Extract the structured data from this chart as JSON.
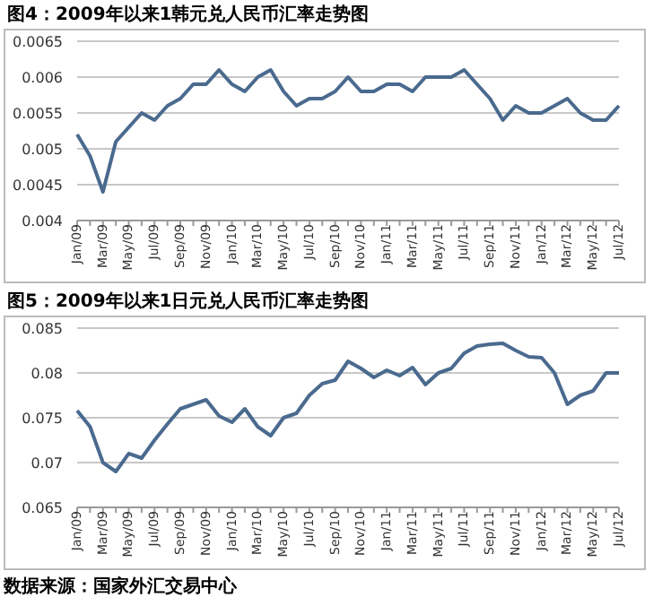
{
  "chart_data": [
    {
      "type": "line",
      "title": "图4：2009年以来1韩元兑人民币汇率走势图",
      "categories": [
        "Jan/09",
        null,
        "Mar/09",
        null,
        "May/09",
        null,
        "Jul/09",
        null,
        "Sep/09",
        null,
        "Nov/09",
        null,
        "Jan/10",
        null,
        "Mar/10",
        null,
        "May/10",
        null,
        "Jul/10",
        null,
        "Sep/10",
        null,
        "Nov/10",
        null,
        "Jan/11",
        null,
        "Mar/11",
        null,
        "May/11",
        null,
        "Jul/11",
        null,
        "Sep/11",
        null,
        "Nov/11",
        null,
        "Jan/12",
        null,
        "Mar/12",
        null,
        "May/12",
        null,
        "Jul/12"
      ],
      "series": [
        {
          "color": "#4a6a8e",
          "values": [
            0.0052,
            0.0049,
            0.0044,
            0.0051,
            0.0053,
            0.0055,
            0.0054,
            0.0056,
            0.0057,
            0.0059,
            0.0059,
            0.0061,
            0.0059,
            0.0058,
            0.006,
            0.0061,
            0.0058,
            0.0056,
            0.0057,
            0.0057,
            0.0058,
            0.006,
            0.0058,
            0.0058,
            0.0059,
            0.0059,
            0.0058,
            0.006,
            0.006,
            0.006,
            0.0061,
            0.0059,
            0.0057,
            0.0054,
            0.0056,
            0.0055,
            0.0055,
            0.0056,
            0.0057,
            0.0055,
            0.0054,
            0.0054,
            0.0056
          ]
        }
      ],
      "ylim": [
        0.004,
        0.0065
      ],
      "yticks": [
        0.004,
        0.0045,
        0.005,
        0.0055,
        0.006,
        0.0065
      ],
      "grid": "y",
      "marker": "none",
      "line_style": "solid"
    },
    {
      "type": "line",
      "title": "图5：2009年以来1日元兑人民币汇率走势图",
      "categories": [
        "Jan/09",
        null,
        "Mar/09",
        null,
        "May/09",
        null,
        "Jul/09",
        null,
        "Sep/09",
        null,
        "Nov/09",
        null,
        "Jan/10",
        null,
        "Mar/10",
        null,
        "May/10",
        null,
        "Jul/10",
        null,
        "Sep/10",
        null,
        "Nov/10",
        null,
        "Jan/11",
        null,
        "Mar/11",
        null,
        "May/11",
        null,
        "Jul/11",
        null,
        "Sep/11",
        null,
        "Nov/11",
        null,
        "Jan/12",
        null,
        "Mar/12",
        null,
        "May/12",
        null,
        "Jul/12"
      ],
      "series": [
        {
          "color": "#4a6a8e",
          "values": [
            0.0758,
            0.074,
            0.07,
            0.069,
            0.071,
            0.0705,
            0.0725,
            0.0743,
            0.076,
            0.0765,
            0.077,
            0.0752,
            0.0745,
            0.076,
            0.074,
            0.073,
            0.075,
            0.0755,
            0.0775,
            0.0788,
            0.0792,
            0.0813,
            0.0805,
            0.0795,
            0.0803,
            0.0797,
            0.0806,
            0.0787,
            0.08,
            0.0805,
            0.0822,
            0.083,
            0.0832,
            0.0833,
            0.0825,
            0.0818,
            0.0817,
            0.08,
            0.0765,
            0.0775,
            0.078,
            0.08,
            0.08
          ]
        }
      ],
      "ylim": [
        0.065,
        0.085
      ],
      "yticks": [
        0.065,
        0.07,
        0.075,
        0.08,
        0.085
      ],
      "grid": "y",
      "marker": "none",
      "line_style": "solid",
      "annotations": [
        "数据来源：国家外汇交易中心"
      ]
    }
  ]
}
